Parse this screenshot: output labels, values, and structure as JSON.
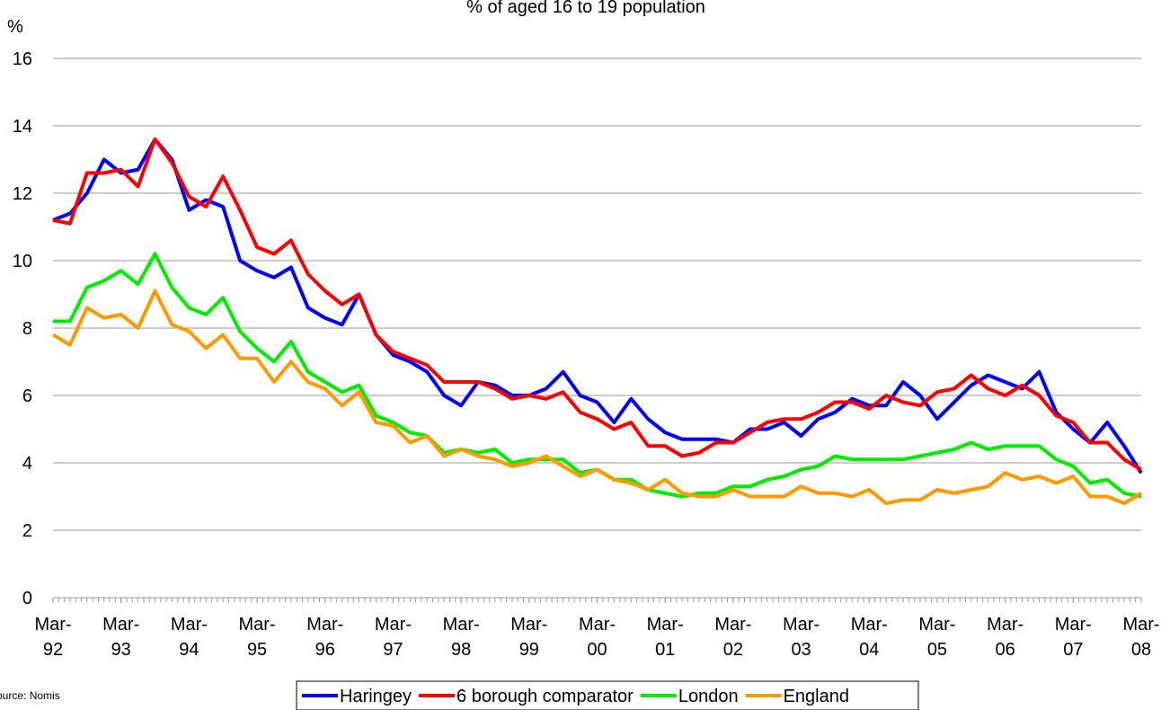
{
  "chart_data": {
    "type": "line",
    "title": "% of aged 16 to 19 population",
    "y_label": "%",
    "source": "Source: Nomis",
    "categories": [
      "Mar-92",
      null,
      null,
      null,
      "Mar-93",
      null,
      null,
      null,
      "Mar-94",
      null,
      null,
      null,
      "Mar-95",
      null,
      null,
      null,
      "Mar-96",
      null,
      null,
      null,
      "Mar-97",
      null,
      null,
      null,
      "Mar-98",
      null,
      null,
      null,
      "Mar-99",
      null,
      null,
      null,
      "Mar-00",
      null,
      null,
      null,
      "Mar-01",
      null,
      null,
      null,
      "Mar-02",
      null,
      null,
      null,
      "Mar-03",
      null,
      null,
      null,
      "Mar-04",
      null,
      null,
      null,
      "Mar-05",
      null,
      null,
      null,
      "Mar-06",
      null,
      null,
      null,
      "Mar-07",
      null,
      null,
      null,
      "Mar-08"
    ],
    "series": [
      {
        "name": "Haringey",
        "color": "#0000ff",
        "values": [
          11.2,
          11.4,
          12.0,
          13.0,
          12.6,
          12.7,
          13.6,
          13.0,
          11.5,
          11.8,
          11.6,
          10.0,
          9.7,
          9.5,
          9.8,
          8.6,
          8.3,
          8.1,
          9.0,
          7.8,
          7.2,
          7.0,
          6.7,
          6.0,
          5.7,
          6.4,
          6.3,
          6.0,
          6.0,
          6.2,
          6.7,
          6.0,
          5.8,
          5.2,
          5.9,
          5.3,
          4.9,
          4.7,
          4.7,
          4.7,
          4.6,
          5.0,
          5.0,
          5.2,
          4.8,
          5.3,
          5.5,
          5.9,
          5.7,
          5.7,
          6.4,
          6.0,
          5.3,
          5.8,
          6.3,
          6.6,
          6.4,
          6.2,
          6.7,
          5.5,
          5.0,
          4.6,
          5.2,
          4.5,
          3.7
        ]
      },
      {
        "name": "6 borough comparator",
        "color": "#ff0000",
        "values": [
          11.2,
          11.1,
          12.6,
          12.6,
          12.7,
          12.2,
          13.6,
          12.9,
          11.9,
          11.6,
          12.5,
          11.5,
          10.4,
          10.2,
          10.6,
          9.6,
          9.1,
          8.7,
          9.0,
          7.8,
          7.3,
          7.1,
          6.9,
          6.4,
          6.4,
          6.4,
          6.2,
          5.9,
          6.0,
          5.9,
          6.1,
          5.5,
          5.3,
          5.0,
          5.2,
          4.5,
          4.5,
          4.2,
          4.3,
          4.6,
          4.6,
          4.9,
          5.2,
          5.3,
          5.3,
          5.5,
          5.8,
          5.8,
          5.6,
          6.0,
          5.8,
          5.7,
          6.1,
          6.2,
          6.6,
          6.2,
          6.0,
          6.3,
          6.0,
          5.4,
          5.2,
          4.6,
          4.6,
          4.1,
          3.8
        ]
      },
      {
        "name": "London",
        "color": "#00ee00",
        "values": [
          8.2,
          8.2,
          9.2,
          9.4,
          9.7,
          9.3,
          10.2,
          9.2,
          8.6,
          8.4,
          8.9,
          7.9,
          7.4,
          7.0,
          7.6,
          6.7,
          6.4,
          6.1,
          6.3,
          5.4,
          5.2,
          4.9,
          4.8,
          4.3,
          4.4,
          4.3,
          4.4,
          4.0,
          4.1,
          4.1,
          4.1,
          3.7,
          3.8,
          3.5,
          3.5,
          3.2,
          3.1,
          3.0,
          3.1,
          3.1,
          3.3,
          3.3,
          3.5,
          3.6,
          3.8,
          3.9,
          4.2,
          4.1,
          4.1,
          4.1,
          4.1,
          4.2,
          4.3,
          4.4,
          4.6,
          4.4,
          4.5,
          4.5,
          4.5,
          4.1,
          3.9,
          3.4,
          3.5,
          3.1,
          3.0
        ]
      },
      {
        "name": "England",
        "color": "#ff9900",
        "values": [
          7.8,
          7.5,
          8.6,
          8.3,
          8.4,
          8.0,
          9.1,
          8.1,
          7.9,
          7.4,
          7.8,
          7.1,
          7.1,
          6.4,
          7.0,
          6.4,
          6.2,
          5.7,
          6.1,
          5.2,
          5.1,
          4.6,
          4.8,
          4.2,
          4.4,
          4.2,
          4.1,
          3.9,
          4.0,
          4.2,
          3.9,
          3.6,
          3.8,
          3.5,
          3.4,
          3.2,
          3.5,
          3.1,
          3.0,
          3.0,
          3.2,
          3.0,
          3.0,
          3.0,
          3.3,
          3.1,
          3.1,
          3.0,
          3.2,
          2.8,
          2.9,
          2.9,
          3.2,
          3.1,
          3.2,
          3.3,
          3.7,
          3.5,
          3.6,
          3.4,
          3.6,
          3.0,
          3.0,
          2.8,
          3.1
        ]
      }
    ],
    "ylim": [
      0,
      16
    ],
    "yticks": [
      0,
      2,
      4,
      6,
      8,
      10,
      12,
      14,
      16
    ],
    "grid": true,
    "legend": "bottom"
  }
}
